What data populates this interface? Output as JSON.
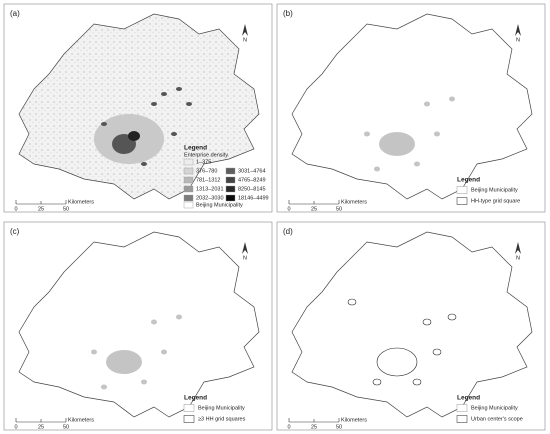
{
  "panels": [
    {
      "label": "(a)",
      "north": "N",
      "legend_title": "Legend",
      "legend_subtitle": "Enterprise density",
      "legend_items": [
        {
          "label": "1–375",
          "color": "#ececec"
        },
        {
          "label": "376–780",
          "color": "#d4d4d4"
        },
        {
          "label": "781–1312",
          "color": "#b8b8b8"
        },
        {
          "label": "1313–2031",
          "color": "#9a9a9a"
        },
        {
          "label": "2032–3030",
          "color": "#7c7c7c"
        },
        {
          "label": "3031–4764",
          "color": "#5e5e5e"
        },
        {
          "label": "4765–8249",
          "color": "#444444"
        },
        {
          "label": "8250–8145",
          "color": "#2a2a2a"
        },
        {
          "label": "18146–4499",
          "color": "#0a0a0a"
        },
        {
          "label": "Beijing Municipality",
          "color": "#ffffff"
        }
      ],
      "scale_ticks": [
        "0",
        "25",
        "50"
      ],
      "scale_unit": "Kilometers"
    },
    {
      "label": "(b)",
      "north": "N",
      "legend_title": "Legend",
      "legend_items": [
        {
          "label": "Beijing Municipality",
          "color": "#ffffff"
        },
        {
          "label": "HH-type grid square",
          "color": "#ffffff"
        }
      ],
      "scale_ticks": [
        "0",
        "25",
        "50"
      ],
      "scale_unit": "Kilometers"
    },
    {
      "label": "(c)",
      "north": "N",
      "legend_title": "Legend",
      "legend_items": [
        {
          "label": "Beijing Municipality",
          "color": "#ffffff"
        },
        {
          "label": "≥3 HH grid squares",
          "color": "#ffffff"
        }
      ],
      "scale_ticks": [
        "0",
        "25",
        "50"
      ],
      "scale_unit": "Kilometers"
    },
    {
      "label": "(d)",
      "north": "N",
      "legend_title": "Legend",
      "legend_items": [
        {
          "label": "Beijing Municipality",
          "color": "#ffffff"
        },
        {
          "label": "Urban center's scope",
          "color": "#ffffff"
        }
      ],
      "scale_ticks": [
        "0",
        "25",
        "50"
      ],
      "scale_unit": "Kilometers"
    }
  ]
}
